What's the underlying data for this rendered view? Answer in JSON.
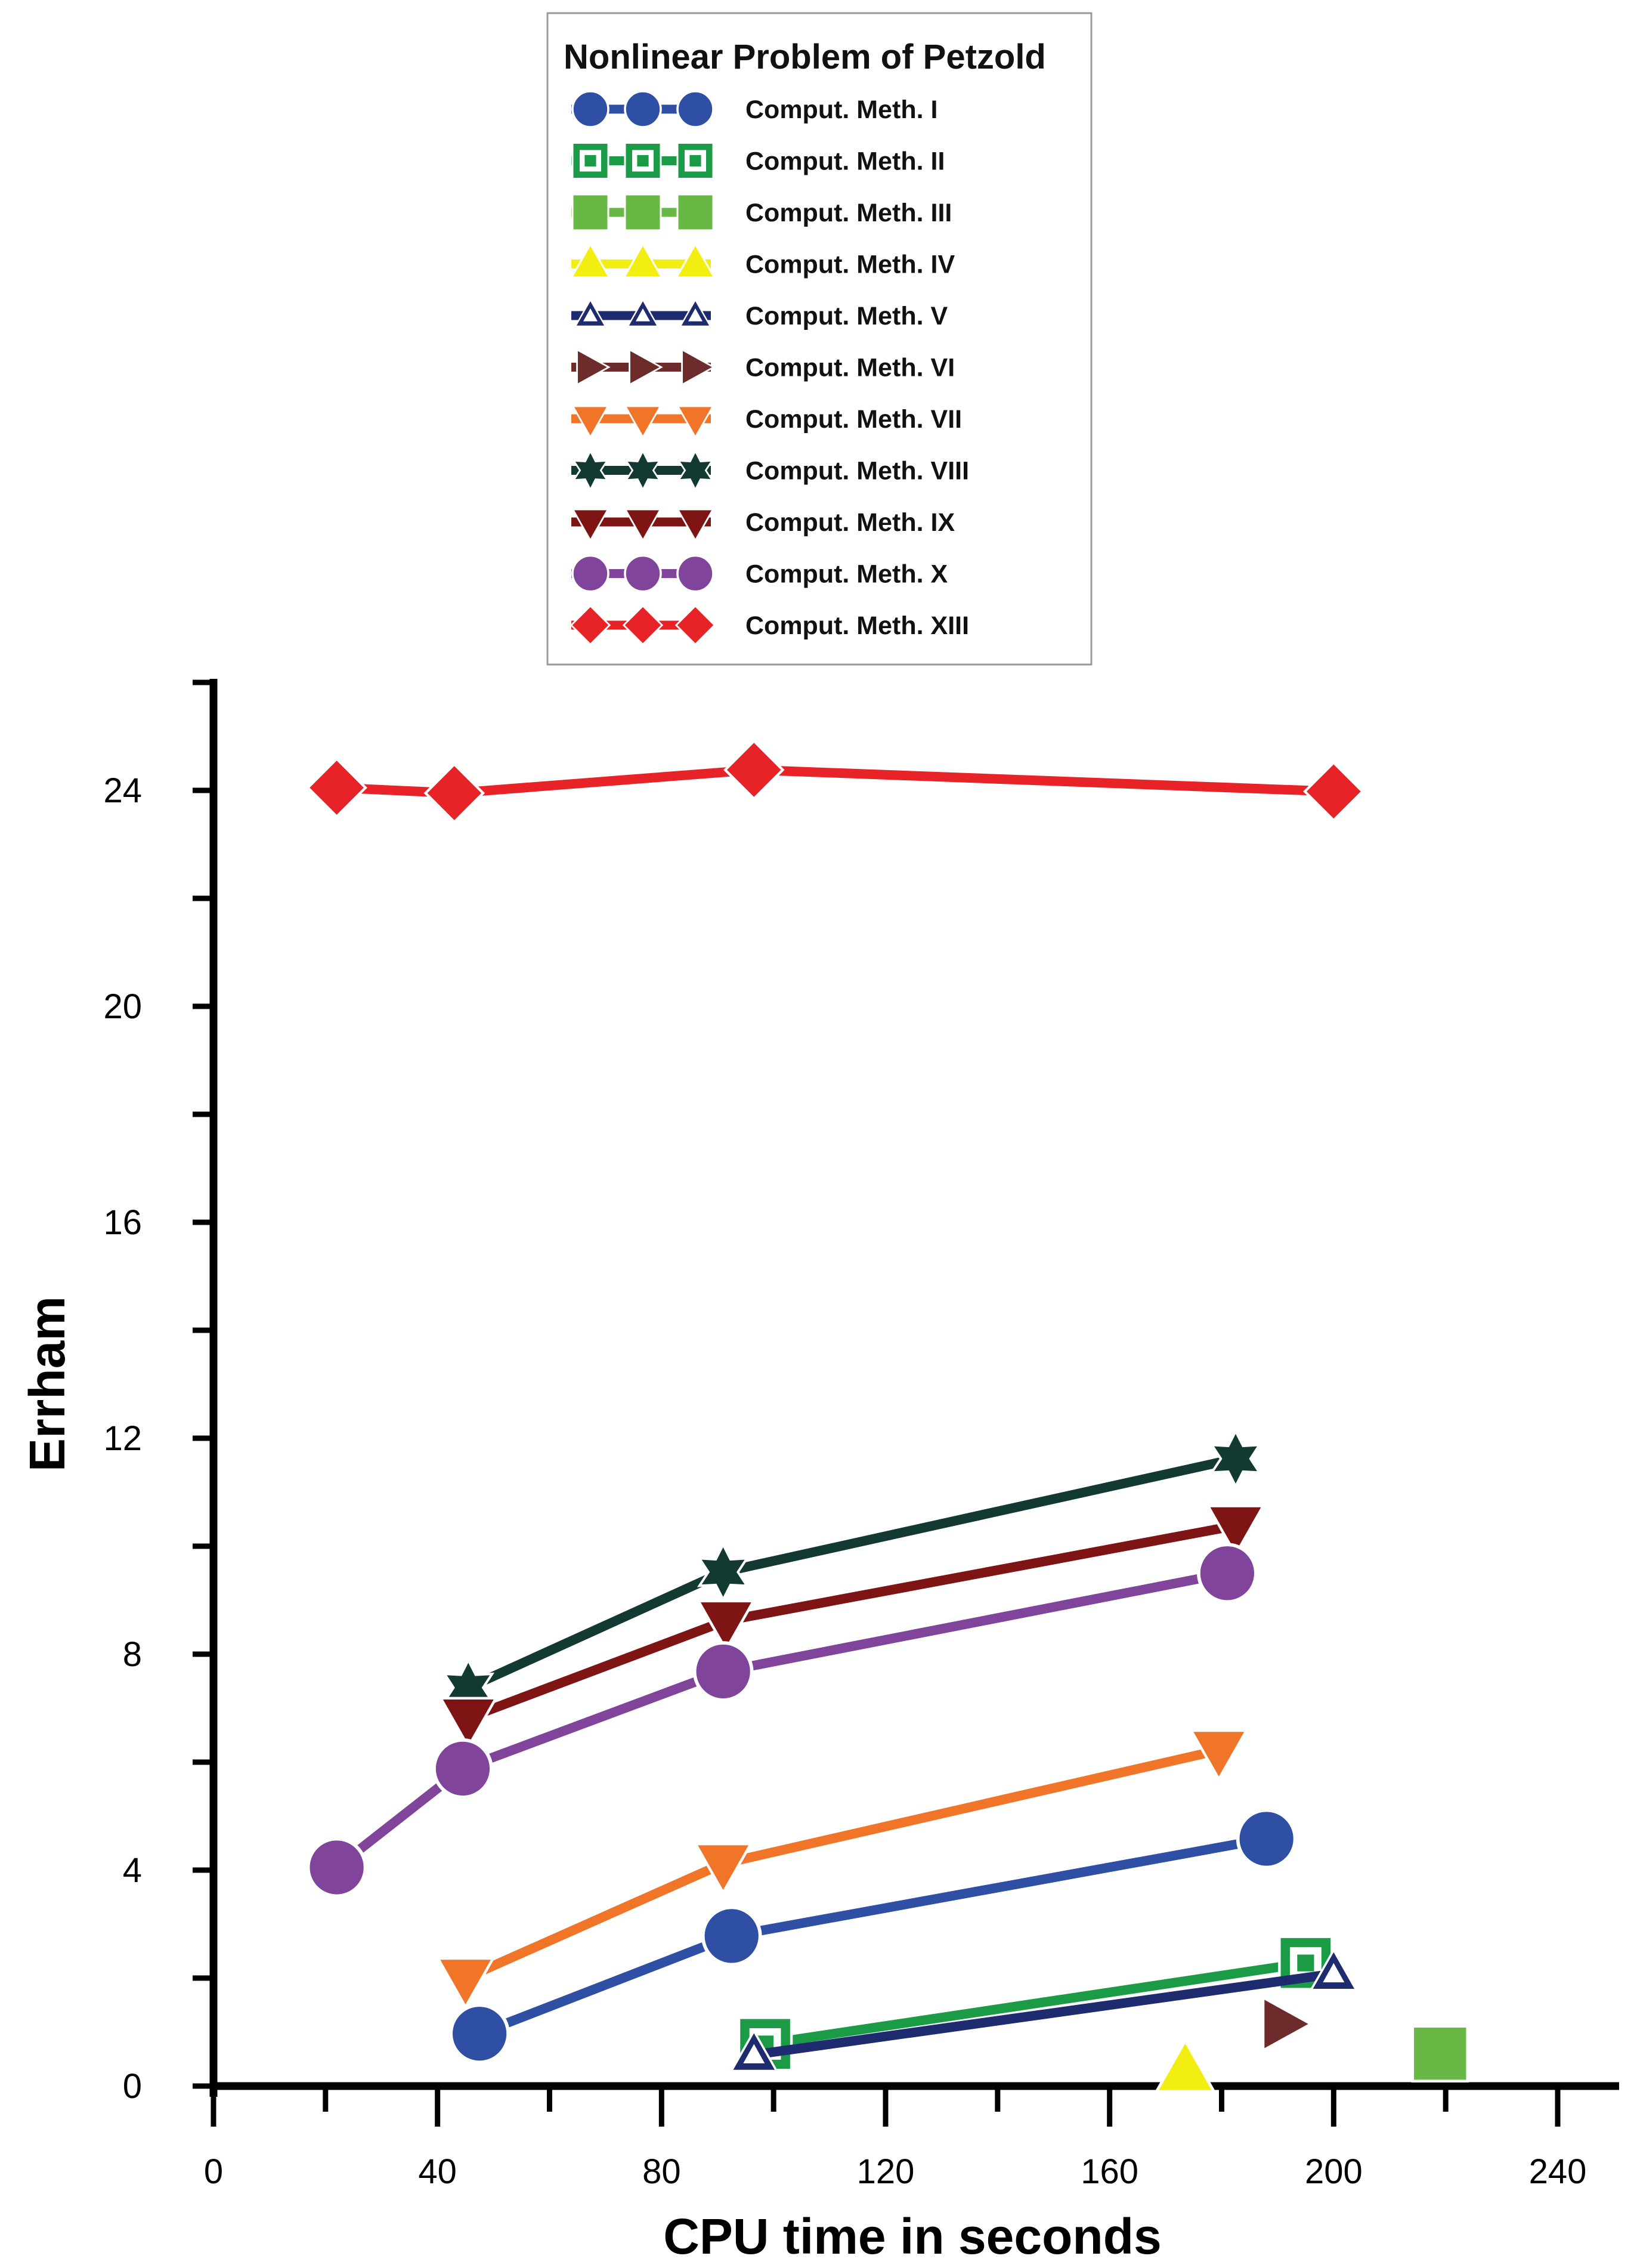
{
  "chart_data": {
    "type": "line",
    "title": "",
    "xlabel": "CPU time in seconds",
    "ylabel": "Errham",
    "xlim": [
      0,
      250
    ],
    "ylim": [
      0,
      25.3
    ],
    "xticks": [
      0,
      40,
      80,
      120,
      160,
      200,
      240
    ],
    "yticks": [
      0,
      4,
      8,
      12,
      16,
      20,
      24
    ],
    "legend": {
      "title": "Nonlinear Problem of Petzold",
      "position": "top-center"
    },
    "series": [
      {
        "name": "Comput. Meth. I",
        "color": "#2E4FA3",
        "marker": "circle-filled",
        "x": [
          47.5,
          92.5,
          188
        ],
        "y": [
          0.97,
          2.78,
          4.58
        ]
      },
      {
        "name": "Comput. Meth. II",
        "color": "#1C9B46",
        "marker": "square-open",
        "x": [
          98.5,
          195
        ],
        "y": [
          0.78,
          2.28
        ]
      },
      {
        "name": "Comput. Meth. III",
        "color": "#67B844",
        "marker": "square-filled",
        "x": [
          219
        ],
        "y": [
          0.6
        ]
      },
      {
        "name": "Comput. Meth. IV",
        "color": "#F2EE12",
        "marker": "triangle-up-filled",
        "x": [
          173.5
        ],
        "y": [
          0.28
        ]
      },
      {
        "name": "Comput. Meth. V",
        "color": "#1E2B6E",
        "marker": "triangle-up-open",
        "x": [
          96.5,
          200
        ],
        "y": [
          0.58,
          2.08
        ]
      },
      {
        "name": "Comput. Meth. VI",
        "color": "#6D2B2B",
        "marker": "triangle-right-filled",
        "x": [
          191
        ],
        "y": [
          1.15
        ]
      },
      {
        "name": "Comput. Meth. VII",
        "color": "#F07528",
        "marker": "triangle-down-filled",
        "x": [
          45,
          91,
          179.5
        ],
        "y": [
          2.0,
          4.12,
          6.22
        ]
      },
      {
        "name": "Comput. Meth. VIII",
        "color": "#123A33",
        "marker": "star-filled",
        "x": [
          45.5,
          91,
          182.5
        ],
        "y": [
          7.38,
          9.52,
          11.62
        ]
      },
      {
        "name": "Comput. Meth. IX",
        "color": "#7E1414",
        "marker": "triangle-down-filled",
        "x": [
          45.5,
          91.5,
          182.5
        ],
        "y": [
          6.82,
          8.62,
          10.38
        ]
      },
      {
        "name": "Comput. Meth. X",
        "color": "#80449A",
        "marker": "circle-filled",
        "x": [
          22,
          44.5,
          91,
          181
        ],
        "y": [
          4.05,
          5.88,
          7.68,
          9.5
        ]
      },
      {
        "name": "Comput. Meth. XIII",
        "color": "#E82328",
        "marker": "diamond-filled",
        "x": [
          22,
          43,
          96.5,
          200
        ],
        "y": [
          24.05,
          23.95,
          24.38,
          23.98
        ]
      }
    ]
  }
}
